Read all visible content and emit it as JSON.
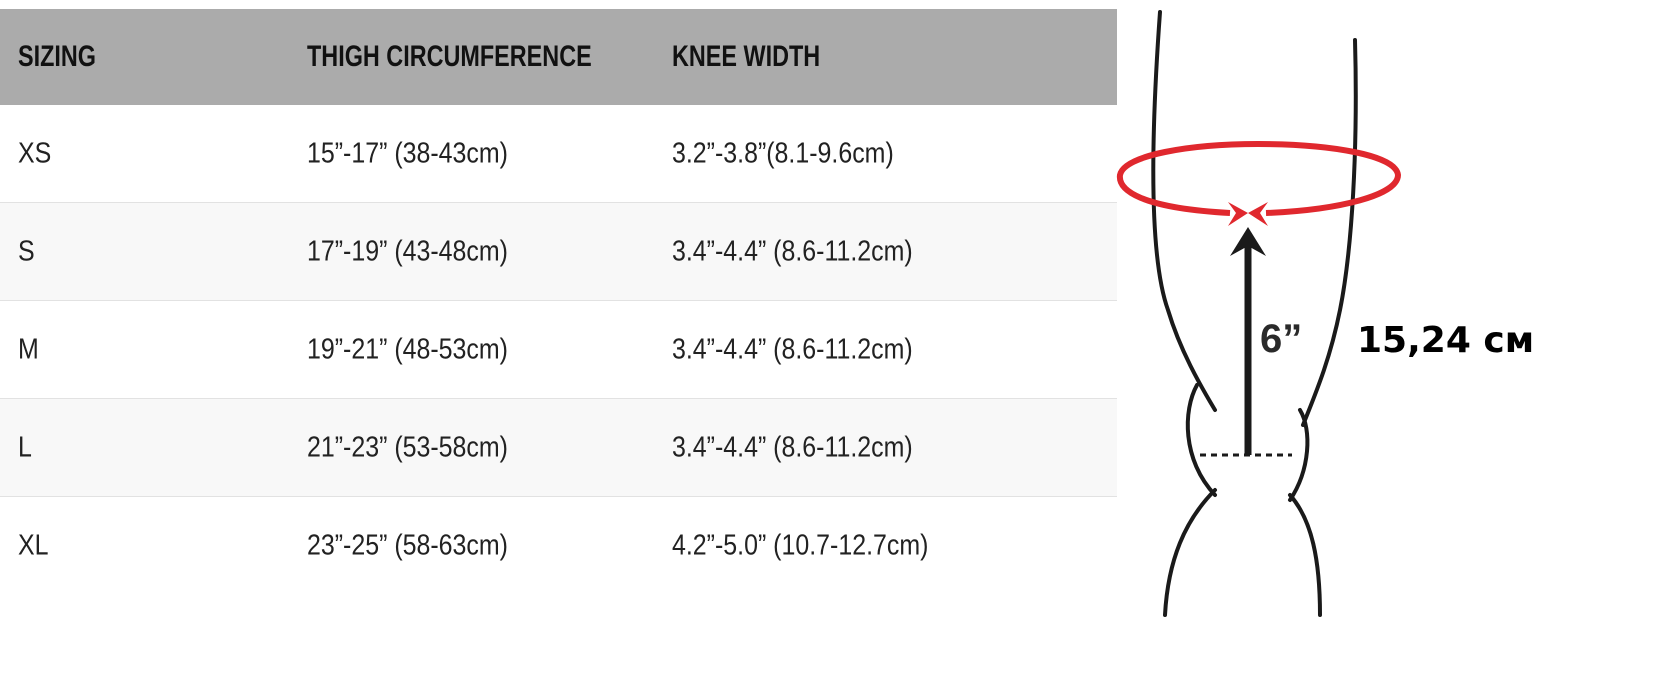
{
  "table": {
    "headers": [
      "SIZING",
      "THIGH CIRCUMFERENCE",
      "KNEE WIDTH"
    ],
    "rows": [
      [
        "XS",
        "15”-17” (38-43cm)",
        "3.2”-3.8”(8.1-9.6cm)"
      ],
      [
        "S",
        "17”-19” (43-48cm)",
        "3.4”-4.4” (8.6-11.2cm)"
      ],
      [
        "M",
        "19”-21” (48-53cm)",
        "3.4”-4.4” (8.6-11.2cm)"
      ],
      [
        "L",
        "21”-23” (53-58cm)",
        "3.4”-4.4” (8.6-11.2cm)"
      ],
      [
        "XL",
        "23”-25” (58-63cm)",
        "4.2”-5.0” (10.7-12.7cm)"
      ]
    ]
  },
  "diagram": {
    "distance_inches": "6”",
    "distance_cm": "15,24 см",
    "measure_color": "#e0282e"
  }
}
